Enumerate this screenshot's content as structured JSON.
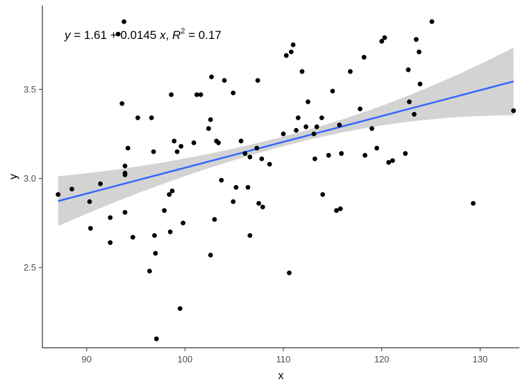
{
  "chart_data": {
    "type": "scatter",
    "xlabel": "x",
    "ylabel": "y",
    "xlim": [
      85.5,
      134
    ],
    "ylim": [
      2.05,
      3.97
    ],
    "x_ticks": [
      90,
      100,
      110,
      120,
      130
    ],
    "y_ticks": [
      2.5,
      3.0,
      3.5
    ],
    "x_tick_labels": [
      "90",
      "100",
      "110",
      "120",
      "130"
    ],
    "y_tick_labels": [
      "2.5",
      "3.0",
      "3.5"
    ],
    "grid": false,
    "annotation": {
      "y": "y",
      "eq": " = 1.61 + 0.0145 ",
      "x": "x",
      "comma": ", ",
      "r": "R",
      "sup": "2",
      "val": " = 0.17"
    },
    "points": [
      [
        87.1,
        2.91
      ],
      [
        88.5,
        2.94
      ],
      [
        90.3,
        2.87
      ],
      [
        90.4,
        2.72
      ],
      [
        91.4,
        2.97
      ],
      [
        92.4,
        2.78
      ],
      [
        92.4,
        2.64
      ],
      [
        93.2,
        3.81
      ],
      [
        93.6,
        3.42
      ],
      [
        93.8,
        3.88
      ],
      [
        93.9,
        3.07
      ],
      [
        93.9,
        3.03
      ],
      [
        93.9,
        3.02
      ],
      [
        93.9,
        2.81
      ],
      [
        94.2,
        3.17
      ],
      [
        94.7,
        2.67
      ],
      [
        95.2,
        3.34
      ],
      [
        96.4,
        2.48
      ],
      [
        96.6,
        3.34
      ],
      [
        96.8,
        3.15
      ],
      [
        96.9,
        2.68
      ],
      [
        97.0,
        2.58
      ],
      [
        97.1,
        2.1
      ],
      [
        97.9,
        2.82
      ],
      [
        98.4,
        2.91
      ],
      [
        98.5,
        2.7
      ],
      [
        98.6,
        3.47
      ],
      [
        98.7,
        2.93
      ],
      [
        98.9,
        3.21
      ],
      [
        99.2,
        3.15
      ],
      [
        99.6,
        3.18
      ],
      [
        99.5,
        2.27
      ],
      [
        99.8,
        2.75
      ],
      [
        100.9,
        3.2
      ],
      [
        101.2,
        3.47
      ],
      [
        101.6,
        3.47
      ],
      [
        102.4,
        3.28
      ],
      [
        102.6,
        3.33
      ],
      [
        102.7,
        3.57
      ],
      [
        102.6,
        2.57
      ],
      [
        103.0,
        2.77
      ],
      [
        103.2,
        3.21
      ],
      [
        103.4,
        3.2
      ],
      [
        103.7,
        2.99
      ],
      [
        104.0,
        3.55
      ],
      [
        104.9,
        3.48
      ],
      [
        104.9,
        2.87
      ],
      [
        105.2,
        2.95
      ],
      [
        105.7,
        3.21
      ],
      [
        106.1,
        3.14
      ],
      [
        106.4,
        2.95
      ],
      [
        106.6,
        3.12
      ],
      [
        106.6,
        2.68
      ],
      [
        107.3,
        3.17
      ],
      [
        107.4,
        3.55
      ],
      [
        107.5,
        2.86
      ],
      [
        107.9,
        2.84
      ],
      [
        107.8,
        3.11
      ],
      [
        108.6,
        3.08
      ],
      [
        110.0,
        3.25
      ],
      [
        110.3,
        3.69
      ],
      [
        110.6,
        2.47
      ],
      [
        110.8,
        3.71
      ],
      [
        111.0,
        3.75
      ],
      [
        111.3,
        3.27
      ],
      [
        111.5,
        3.34
      ],
      [
        111.9,
        3.6
      ],
      [
        112.3,
        3.29
      ],
      [
        112.5,
        3.43
      ],
      [
        113.1,
        3.25
      ],
      [
        113.2,
        3.11
      ],
      [
        113.4,
        3.29
      ],
      [
        113.9,
        3.34
      ],
      [
        114.0,
        2.91
      ],
      [
        114.6,
        3.13
      ],
      [
        115.0,
        3.49
      ],
      [
        115.4,
        2.82
      ],
      [
        115.7,
        3.3
      ],
      [
        115.8,
        2.83
      ],
      [
        115.9,
        3.14
      ],
      [
        116.8,
        3.6
      ],
      [
        117.8,
        3.39
      ],
      [
        118.2,
        3.68
      ],
      [
        118.3,
        3.13
      ],
      [
        119.0,
        3.28
      ],
      [
        119.5,
        3.17
      ],
      [
        120.0,
        3.77
      ],
      [
        120.3,
        3.79
      ],
      [
        120.7,
        3.09
      ],
      [
        121.1,
        3.1
      ],
      [
        122.4,
        3.14
      ],
      [
        122.7,
        3.61
      ],
      [
        122.8,
        3.43
      ],
      [
        123.3,
        3.36
      ],
      [
        123.5,
        3.78
      ],
      [
        123.8,
        3.71
      ],
      [
        123.9,
        3.53
      ],
      [
        125.1,
        3.88
      ],
      [
        129.3,
        2.86
      ],
      [
        133.4,
        3.38
      ]
    ],
    "fit": {
      "intercept": 1.61,
      "slope": 0.0145,
      "x_range": [
        87.1,
        133.4
      ]
    },
    "band_halfwidth_lower": [
      0.14,
      0.024,
      0.19
    ],
    "band_halfwidth_upper": [
      0.14,
      0.03,
      0.19
    ],
    "colors": {
      "point": "#000000",
      "line": "#3366FF",
      "band": "#d3d3d3",
      "axis": "#000000"
    }
  }
}
